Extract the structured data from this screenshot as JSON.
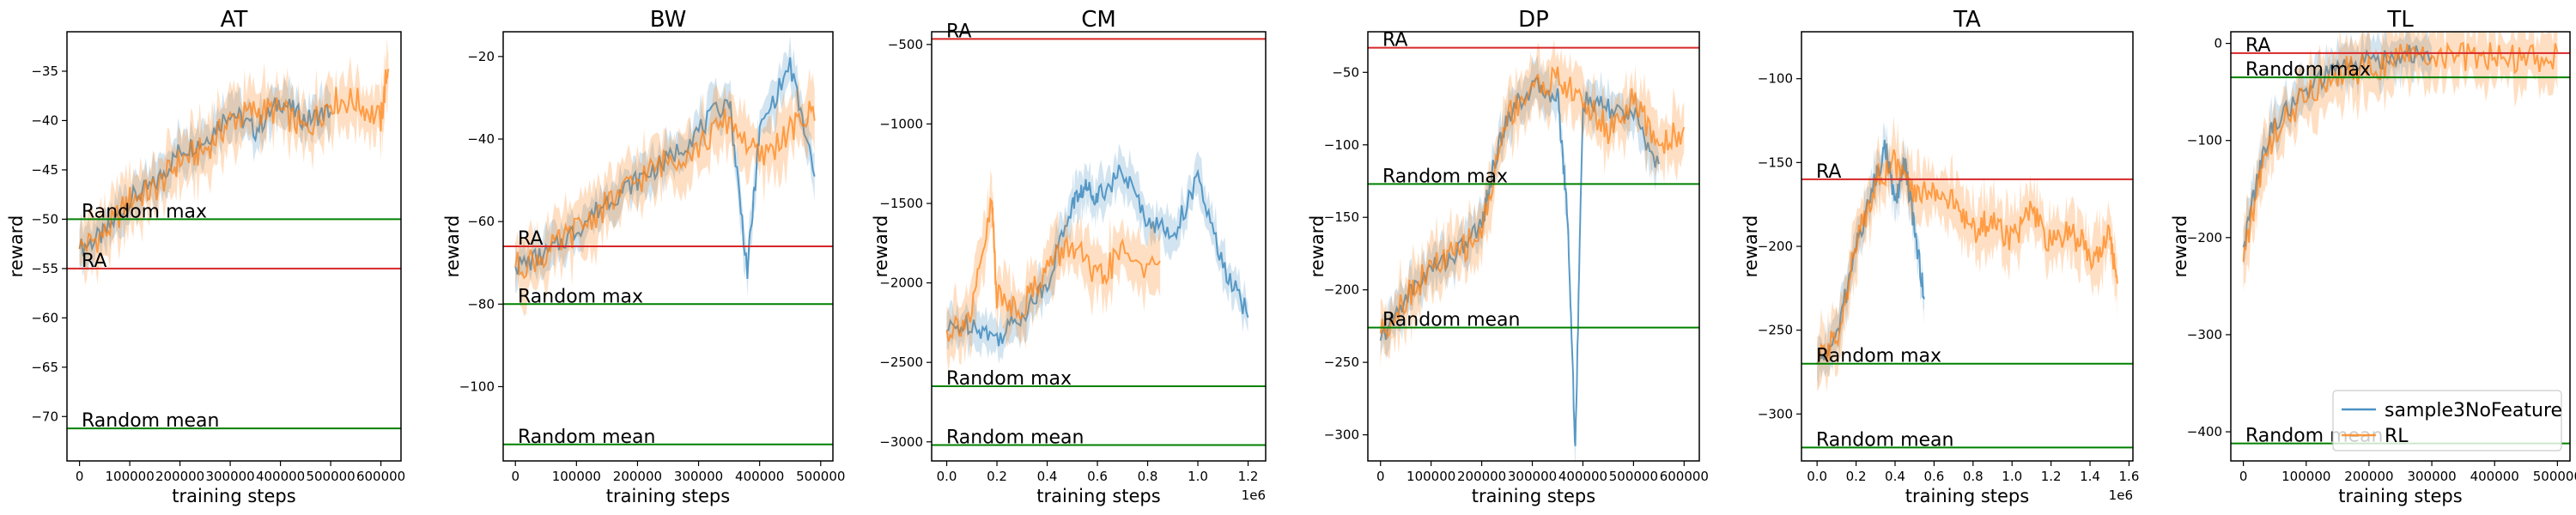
{
  "figure": {
    "legend": {
      "placement": "lower-right",
      "panel": "TL",
      "entries": [
        "sample3NoFeature",
        "RL"
      ]
    }
  },
  "chart_data": [
    {
      "type": "line",
      "title": "AT",
      "xlabel": "training steps",
      "ylabel": "reward",
      "xlim": [
        -25000,
        640000
      ],
      "ylim": [
        -74.5,
        -31
      ],
      "xticks": [
        0,
        100000,
        200000,
        300000,
        400000,
        500000,
        600000
      ],
      "xticklabels": [
        "0",
        "100000",
        "200000",
        "300000",
        "400000",
        "500000",
        "600000"
      ],
      "x_offset_label": "",
      "yticks": [
        -70,
        -65,
        -60,
        -55,
        -50,
        -45,
        -40,
        -35
      ],
      "yticklabels": [
        "−70",
        "−65",
        "−60",
        "−55",
        "−50",
        "−45",
        "−40",
        "−35"
      ],
      "hlines": [
        {
          "label": "Random max",
          "y": -50,
          "color": "#008000"
        },
        {
          "label": "RA",
          "y": -55,
          "color": "#d62728"
        },
        {
          "label": "Random mean",
          "y": -71.2,
          "color": "#008000"
        }
      ],
      "series": [
        {
          "name": "sample3NoFeature",
          "color": "#1f77b4",
          "x": [
            0,
            50000,
            100000,
            150000,
            200000,
            250000,
            300000,
            350000,
            400000,
            450000,
            500000
          ],
          "y": [
            -53,
            -51.5,
            -48,
            -46.5,
            -43,
            -42,
            -39,
            -41,
            -38,
            -40,
            -39
          ]
        },
        {
          "name": "RL",
          "color": "#ff7f0e",
          "x": [
            0,
            50000,
            100000,
            150000,
            200000,
            250000,
            300000,
            350000,
            400000,
            450000,
            500000,
            550000,
            600000,
            615000
          ],
          "y": [
            -53,
            -51.5,
            -48,
            -47,
            -44,
            -43,
            -40,
            -39,
            -39,
            -41,
            -38,
            -38,
            -40,
            -34
          ]
        }
      ]
    },
    {
      "type": "line",
      "title": "BW",
      "xlabel": "training steps",
      "ylabel": "reward",
      "xlim": [
        -20000,
        520000
      ],
      "ylim": [
        -118,
        -14
      ],
      "xticks": [
        0,
        100000,
        200000,
        300000,
        400000,
        500000
      ],
      "xticklabels": [
        "0",
        "100000",
        "200000",
        "300000",
        "400000",
        "500000"
      ],
      "x_offset_label": "",
      "yticks": [
        -100,
        -80,
        -60,
        -40,
        -20
      ],
      "yticklabels": [
        "−100",
        "−80",
        "−60",
        "−40",
        "−20"
      ],
      "hlines": [
        {
          "label": "RA",
          "y": -66,
          "color": "#d62728"
        },
        {
          "label": "Random max",
          "y": -80,
          "color": "#008000"
        },
        {
          "label": "Random mean",
          "y": -114,
          "color": "#008000"
        }
      ],
      "series": [
        {
          "name": "sample3NoFeature",
          "color": "#1f77b4",
          "x": [
            0,
            50000,
            100000,
            150000,
            200000,
            250000,
            300000,
            350000,
            380000,
            400000,
            450000,
            490000
          ],
          "y": [
            -71,
            -68,
            -62,
            -55,
            -50,
            -45,
            -38,
            -30,
            -72,
            -38,
            -22,
            -49
          ]
        },
        {
          "name": "RL",
          "color": "#ff7f0e",
          "x": [
            0,
            50000,
            100000,
            150000,
            200000,
            250000,
            300000,
            350000,
            400000,
            450000,
            490000
          ],
          "y": [
            -71,
            -68,
            -62,
            -56,
            -50,
            -45,
            -42,
            -35,
            -45,
            -38,
            -33
          ]
        }
      ]
    },
    {
      "type": "line",
      "title": "CM",
      "xlabel": "training steps",
      "ylabel": "reward",
      "xlim": [
        -60000,
        1270000
      ],
      "ylim": [
        -3120,
        -420
      ],
      "xticks": [
        0,
        200000,
        400000,
        600000,
        800000,
        1000000,
        1200000
      ],
      "xticklabels": [
        "0.0",
        "0.2",
        "0.4",
        "0.6",
        "0.8",
        "1.0",
        "1.2"
      ],
      "x_offset_label": "1e6",
      "yticks": [
        -3000,
        -2500,
        -2000,
        -1500,
        -1000,
        -500
      ],
      "yticklabels": [
        "−3000",
        "−2500",
        "−2000",
        "−1500",
        "−1000",
        "−500"
      ],
      "hlines": [
        {
          "label": "RA",
          "y": -465,
          "color": "#d62728"
        },
        {
          "label": "Random max",
          "y": -2650,
          "color": "#008000"
        },
        {
          "label": "Random mean",
          "y": -3020,
          "color": "#008000"
        }
      ],
      "series": [
        {
          "name": "sample3NoFeature",
          "color": "#1f77b4",
          "x": [
            0,
            100000,
            200000,
            300000,
            400000,
            500000,
            550000,
            600000,
            700000,
            800000,
            900000,
            1000000,
            1100000,
            1200000
          ],
          "y": [
            -2300,
            -2250,
            -2350,
            -2200,
            -2000,
            -1500,
            -1400,
            -1450,
            -1300,
            -1600,
            -1700,
            -1350,
            -1900,
            -2200
          ]
        },
        {
          "name": "RL",
          "color": "#ff7f0e",
          "x": [
            0,
            100000,
            180000,
            200000,
            300000,
            400000,
            500000,
            600000,
            700000,
            850000
          ],
          "y": [
            -2300,
            -2200,
            -1500,
            -2100,
            -2150,
            -1900,
            -1750,
            -2000,
            -1800,
            -1950
          ]
        }
      ]
    },
    {
      "type": "line",
      "title": "DP",
      "xlabel": "training steps",
      "ylabel": "reward",
      "xlim": [
        -25000,
        630000
      ],
      "ylim": [
        -318,
        -22
      ],
      "xticks": [
        0,
        100000,
        200000,
        300000,
        400000,
        500000,
        600000
      ],
      "xticklabels": [
        "0",
        "100000",
        "200000",
        "300000",
        "400000",
        "500000",
        "600000"
      ],
      "x_offset_label": "",
      "yticks": [
        -300,
        -250,
        -200,
        -150,
        -100,
        -50
      ],
      "yticklabels": [
        "−300",
        "−250",
        "−200",
        "−150",
        "−100",
        "−50"
      ],
      "hlines": [
        {
          "label": "RA",
          "y": -33,
          "color": "#d62728"
        },
        {
          "label": "Random max",
          "y": -127,
          "color": "#008000"
        },
        {
          "label": "Random mean",
          "y": -226,
          "color": "#008000"
        }
      ],
      "series": [
        {
          "name": "sample3NoFeature",
          "color": "#1f77b4",
          "x": [
            0,
            50000,
            100000,
            150000,
            200000,
            220000,
            250000,
            300000,
            350000,
            370000,
            385000,
            400000,
            450000,
            500000,
            550000
          ],
          "y": [
            -235,
            -205,
            -185,
            -175,
            -155,
            -120,
            -80,
            -60,
            -65,
            -150,
            -310,
            -70,
            -75,
            -80,
            -115
          ]
        },
        {
          "name": "RL",
          "color": "#ff7f0e",
          "x": [
            0,
            50000,
            100000,
            150000,
            200000,
            250000,
            300000,
            350000,
            400000,
            450000,
            500000,
            550000,
            600000
          ],
          "y": [
            -230,
            -205,
            -185,
            -175,
            -160,
            -80,
            -60,
            -55,
            -70,
            -90,
            -70,
            -100,
            -90
          ]
        }
      ]
    },
    {
      "type": "line",
      "title": "TA",
      "xlabel": "training steps",
      "ylabel": "reward",
      "xlim": [
        -80000,
        1620000
      ],
      "ylim": [
        -328,
        -72
      ],
      "xticks": [
        0,
        200000,
        400000,
        600000,
        800000,
        1000000,
        1200000,
        1400000,
        1600000
      ],
      "xticklabels": [
        "0.0",
        "0.2",
        "0.4",
        "0.6",
        "0.8",
        "1.0",
        "1.2",
        "1.4",
        "1.6"
      ],
      "x_offset_label": "1e6",
      "yticks": [
        -300,
        -250,
        -200,
        -150,
        -100
      ],
      "yticklabels": [
        "−300",
        "−250",
        "−200",
        "−150",
        "−100"
      ],
      "hlines": [
        {
          "label": "RA",
          "y": -160,
          "color": "#d62728"
        },
        {
          "label": "Random max",
          "y": -270,
          "color": "#008000"
        },
        {
          "label": "Random mean",
          "y": -320,
          "color": "#008000"
        }
      ],
      "series": [
        {
          "name": "sample3NoFeature",
          "color": "#1f77b4",
          "x": [
            0,
            100000,
            200000,
            300000,
            350000,
            400000,
            450000,
            500000,
            550000
          ],
          "y": [
            -270,
            -255,
            -200,
            -160,
            -140,
            -175,
            -150,
            -190,
            -230
          ]
        },
        {
          "name": "RL",
          "color": "#ff7f0e",
          "x": [
            0,
            100000,
            200000,
            300000,
            400000,
            500000,
            600000,
            700000,
            800000,
            900000,
            1000000,
            1100000,
            1200000,
            1300000,
            1400000,
            1500000,
            1540000
          ],
          "y": [
            -270,
            -255,
            -200,
            -160,
            -150,
            -170,
            -165,
            -175,
            -190,
            -185,
            -195,
            -180,
            -200,
            -190,
            -205,
            -195,
            -215
          ]
        }
      ]
    },
    {
      "type": "line",
      "title": "TL",
      "xlabel": "training steps",
      "ylabel": "reward",
      "xlim": [
        -20000,
        520000
      ],
      "ylim": [
        -430,
        12
      ],
      "xticks": [
        0,
        100000,
        200000,
        300000,
        400000,
        500000
      ],
      "xticklabels": [
        "0",
        "100000",
        "200000",
        "300000",
        "400000",
        "500000"
      ],
      "x_offset_label": "",
      "yticks": [
        -400,
        -300,
        -200,
        -100,
        0
      ],
      "yticklabels": [
        "−400",
        "−300",
        "−200",
        "−100",
        "0"
      ],
      "hlines": [
        {
          "label": "RA",
          "y": -10,
          "color": "#d62728"
        },
        {
          "label": "Random max",
          "y": -35,
          "color": "#008000"
        },
        {
          "label": "Random mean",
          "y": -412,
          "color": "#008000"
        }
      ],
      "series": [
        {
          "name": "sample3NoFeature",
          "color": "#1f77b4",
          "x": [
            0,
            25000,
            50000,
            100000,
            150000,
            200000,
            250000,
            300000
          ],
          "y": [
            -210,
            -130,
            -80,
            -50,
            -25,
            -18,
            -12,
            -12
          ]
        },
        {
          "name": "RL",
          "color": "#ff7f0e",
          "x": [
            0,
            25000,
            50000,
            100000,
            150000,
            200000,
            250000,
            300000,
            350000,
            400000,
            450000,
            500000
          ],
          "y": [
            -225,
            -140,
            -90,
            -55,
            -30,
            -25,
            -15,
            -12,
            -15,
            -14,
            -16,
            -14
          ]
        }
      ]
    }
  ]
}
